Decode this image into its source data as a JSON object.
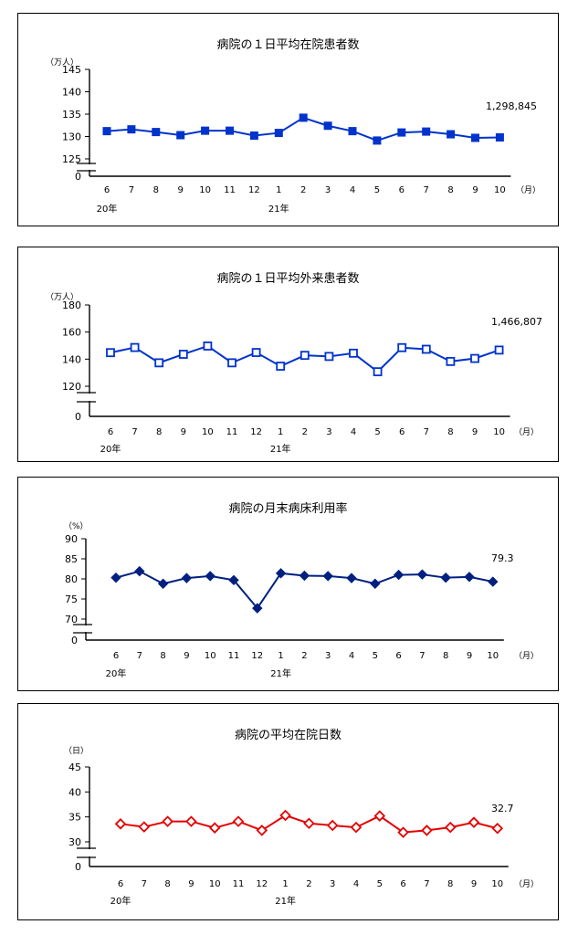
{
  "chart_data": [
    {
      "type": "line",
      "title": "病院の１日平均在院患者数",
      "unit": "（万人）",
      "y_ticks": [
        "145",
        "140",
        "135",
        "130",
        "125"
      ],
      "y_zero": "0",
      "ylim": [
        125,
        145
      ],
      "categories": [
        "6",
        "7",
        "8",
        "9",
        "10",
        "11",
        "12",
        "1",
        "2",
        "3",
        "4",
        "5",
        "6",
        "7",
        "8",
        "9",
        "10"
      ],
      "year_labels": [
        "20年",
        "21年"
      ],
      "month_unit": "（月）",
      "values": [
        131.2,
        131.6,
        131.0,
        130.3,
        131.3,
        131.3,
        130.2,
        130.8,
        134.2,
        132.4,
        131.2,
        129.1,
        130.9,
        131.1,
        130.5,
        129.7,
        129.8
      ],
      "end_label": "1,298,845",
      "color": "#0033cc",
      "marker": "square"
    },
    {
      "type": "line",
      "title": "病院の１日平均外来患者数",
      "unit": "（万人）",
      "y_ticks": [
        "180",
        "160",
        "140",
        "120"
      ],
      "y_zero": "0",
      "ylim": [
        120,
        180
      ],
      "categories": [
        "6",
        "7",
        "8",
        "9",
        "10",
        "11",
        "12",
        "1",
        "2",
        "3",
        "4",
        "5",
        "6",
        "7",
        "8",
        "9",
        "10"
      ],
      "year_labels": [
        "20年",
        "21年"
      ],
      "month_unit": "（月）",
      "values": [
        144.8,
        148.6,
        137.3,
        143.6,
        149.7,
        137.3,
        144.9,
        134.8,
        142.8,
        142.0,
        144.4,
        130.7,
        148.5,
        147.3,
        138.3,
        140.5,
        146.7
      ],
      "end_label": "1,466,807",
      "color": "#0033cc",
      "marker": "open-square"
    },
    {
      "type": "line",
      "title": "病院の月末病床利用率",
      "unit": "（%）",
      "y_ticks": [
        "90",
        "85",
        "80",
        "75",
        "70"
      ],
      "y_zero": "0",
      "ylim": [
        70,
        90
      ],
      "categories": [
        "6",
        "7",
        "8",
        "9",
        "10",
        "11",
        "12",
        "1",
        "2",
        "3",
        "4",
        "5",
        "6",
        "7",
        "8",
        "9",
        "10"
      ],
      "year_labels": [
        "20年",
        "21年"
      ],
      "month_unit": "（月）",
      "values": [
        80.3,
        81.9,
        78.8,
        80.2,
        80.7,
        79.7,
        72.7,
        81.4,
        80.8,
        80.7,
        80.2,
        78.8,
        81.0,
        81.1,
        80.3,
        80.5,
        79.3
      ],
      "end_label": "79.3",
      "color": "#002080",
      "marker": "diamond"
    },
    {
      "type": "line",
      "title": "病院の平均在院日数",
      "unit": "（日）",
      "y_ticks": [
        "45",
        "40",
        "35",
        "30"
      ],
      "y_zero": "0",
      "ylim": [
        30,
        45
      ],
      "categories": [
        "6",
        "7",
        "8",
        "9",
        "10",
        "11",
        "12",
        "1",
        "2",
        "3",
        "4",
        "5",
        "6",
        "7",
        "8",
        "9",
        "10"
      ],
      "year_labels": [
        "20年",
        "21年"
      ],
      "month_unit": "（月）",
      "values": [
        33.6,
        33.0,
        34.1,
        34.1,
        32.8,
        34.1,
        32.3,
        35.3,
        33.7,
        33.3,
        32.9,
        35.2,
        31.9,
        32.3,
        32.9,
        33.9,
        32.7
      ],
      "end_label": "32.7",
      "color": "#e60000",
      "marker": "open-diamond"
    }
  ]
}
